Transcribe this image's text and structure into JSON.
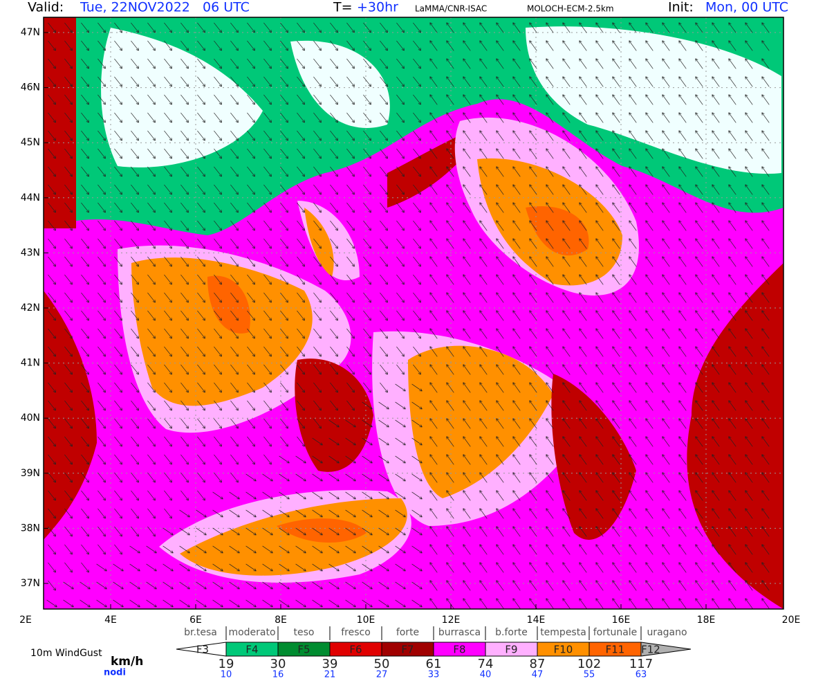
{
  "header": {
    "valid_label": "Valid:",
    "valid_value": "Tue, 22NOV2022   06 UTC",
    "t_label": "T=",
    "t_value": "+30hr",
    "source": "LaMMA/CNR-ISAC",
    "model": "MOLOCH-ECM-2.5km",
    "init_label": "Init:",
    "init_value": "Mon, 00 UTC"
  },
  "axes": {
    "latitudes": [
      "47N",
      "46N",
      "45N",
      "44N",
      "43N",
      "42N",
      "41N",
      "40N",
      "39N",
      "38N",
      "37N"
    ],
    "longitudes": [
      "2E",
      "4E",
      "6E",
      "8E",
      "10E",
      "12E",
      "14E",
      "16E",
      "18E",
      "20E"
    ]
  },
  "legend": {
    "title": "10m WindGust",
    "unit_kmh": "km/h",
    "unit_knots": "nodi",
    "names": [
      "br.tesa",
      "moderato",
      "teso",
      "fresco",
      "forte",
      "burrasca",
      "b.forte",
      "tempesta",
      "fortunale",
      "uragano"
    ],
    "classes": [
      {
        "label": "F3",
        "color": "#ffffff"
      },
      {
        "label": "F4",
        "color": "#00c878"
      },
      {
        "label": "F5",
        "color": "#008c30"
      },
      {
        "label": "F6",
        "color": "#e00000"
      },
      {
        "label": "F7",
        "color": "#a00000"
      },
      {
        "label": "F8",
        "color": "#ff00ff"
      },
      {
        "label": "F9",
        "color": "#ffb0ff"
      },
      {
        "label": "F10",
        "color": "#ff9000"
      },
      {
        "label": "F11",
        "color": "#ff6400"
      },
      {
        "label": "F12",
        "color": "#b0b0b0"
      }
    ],
    "kmh": [
      "19",
      "30",
      "39",
      "50",
      "61",
      "74",
      "87",
      "102",
      "117"
    ],
    "knots": [
      "10",
      "16",
      "21",
      "27",
      "33",
      "40",
      "47",
      "55",
      "63"
    ]
  }
}
